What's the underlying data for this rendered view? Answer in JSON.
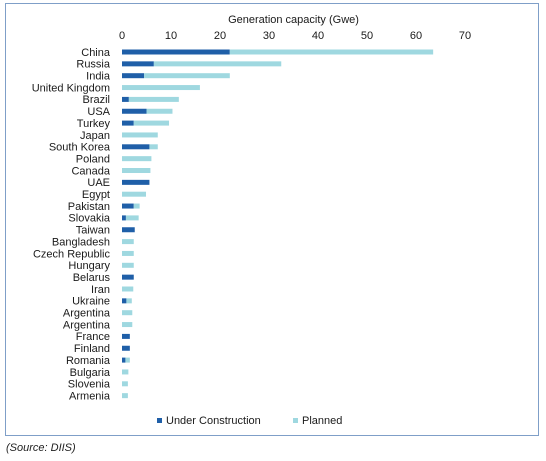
{
  "chart_data": {
    "type": "bar",
    "orientation": "horizontal",
    "stacked": true,
    "title": "",
    "xlabel": "Generation capacity (Gwe)",
    "ylabel": "",
    "xlim": [
      0,
      70
    ],
    "x_ticks": [
      "0",
      "10",
      "20",
      "30",
      "40",
      "50",
      "60",
      "70"
    ],
    "x_axis_position": "top",
    "grid": false,
    "legend_position": "bottom",
    "categories": [
      "China",
      "Russia",
      "India",
      "United Kingdom",
      "Brazil",
      "USA",
      "Turkey",
      "Japan",
      "South Korea",
      "Poland",
      "Canada",
      "UAE",
      "Egypt",
      "Pakistan",
      "Slovakia",
      "Taiwan",
      "Bangladesh",
      "Czech Republic",
      "Hungary",
      "Belarus",
      "Iran",
      "Ukraine",
      "Argentina",
      "Argentina",
      "France",
      "Finland",
      "Romania",
      "Bulgaria",
      "Slovenia",
      "Armenia"
    ],
    "series": [
      {
        "name": "Under Construction",
        "color": "#1f5fa8",
        "values": [
          22,
          6.5,
          4.5,
          0,
          1.4,
          5,
          2.4,
          0,
          5.6,
          0,
          0,
          5.6,
          0,
          2.4,
          0.8,
          2.6,
          0,
          0,
          0,
          2.4,
          0,
          0.9,
          0,
          0,
          1.6,
          1.6,
          0.7,
          0,
          0,
          0
        ]
      },
      {
        "name": "Planned",
        "color": "#9fd8e0",
        "values": [
          41.5,
          26,
          17.5,
          15.9,
          10.2,
          5.3,
          7.2,
          7.3,
          1.7,
          6,
          5.8,
          0,
          4.9,
          1.2,
          2.6,
          0,
          2.4,
          2.4,
          2.4,
          0,
          2.3,
          1.1,
          2.1,
          2.1,
          0,
          0,
          0.9,
          1.3,
          1.2,
          1.2
        ]
      }
    ]
  },
  "source_text": "(Source: DIIS)"
}
